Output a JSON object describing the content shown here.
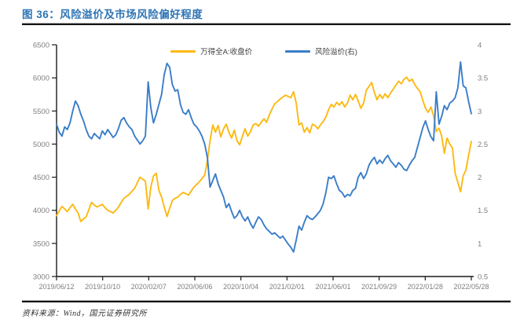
{
  "title": {
    "label": "图 36：风险溢价及市场风险偏好程度"
  },
  "footer": {
    "source": "资料来源：Wind，国元证券研究所"
  },
  "colors": {
    "title_blue": "#2E74B5",
    "wind_a_yellow": "#FDB913",
    "risk_premium_blue": "#3A7DC8",
    "axis_text": "#7F7F7F",
    "spine": "#1A1A1A"
  },
  "chart_data": {
    "type": "line",
    "title": "",
    "grid": false,
    "legend_position": "top-center",
    "legend": [
      {
        "name": "万得全A:收盘价",
        "color": "#FDB913",
        "axis": "left"
      },
      {
        "name": "风险溢价(右)",
        "color": "#3A7DC8",
        "axis": "right"
      }
    ],
    "x_tick_labels": [
      "2019/06/12",
      "2019/10/10",
      "2020/02/07",
      "2020/06/06",
      "2020/10/04",
      "2021/02/01",
      "2021/06/01",
      "2021/09/29",
      "2022/01/28",
      "2022/05/28"
    ],
    "left_axis": {
      "label": "万得全A:收盘价",
      "min": 3000,
      "max": 6500,
      "ticks": [
        3000,
        3500,
        4000,
        4500,
        5000,
        5500,
        6000,
        6500
      ]
    },
    "right_axis": {
      "label": "风险溢价",
      "min": 0.5,
      "max": 4,
      "ticks": [
        0.5,
        1,
        1.5,
        2,
        2.5,
        3,
        3.5,
        4
      ]
    },
    "series": [
      {
        "name": "万得全A:收盘价",
        "axis": "left",
        "color": "#FDB913",
        "values": [
          3920,
          3990,
          4060,
          4020,
          3980,
          4040,
          4090,
          4020,
          3960,
          3830,
          3870,
          3900,
          4010,
          4120,
          4080,
          4050,
          4070,
          4090,
          4040,
          4000,
          3980,
          3960,
          4000,
          4050,
          4120,
          4180,
          4210,
          4240,
          4290,
          4330,
          4420,
          4500,
          4470,
          4440,
          4020,
          4350,
          4520,
          4560,
          4300,
          4200,
          4050,
          3905,
          4030,
          4150,
          4180,
          4200,
          4240,
          4270,
          4250,
          4230,
          4290,
          4350,
          4390,
          4430,
          4480,
          4530,
          4750,
          5050,
          5290,
          5180,
          5280,
          5110,
          5230,
          5300,
          5180,
          5090,
          5210,
          5050,
          4990,
          5120,
          5230,
          5120,
          5190,
          5290,
          5310,
          5270,
          5330,
          5380,
          5330,
          5440,
          5530,
          5610,
          5640,
          5680,
          5710,
          5740,
          5720,
          5700,
          5790,
          5620,
          5290,
          5320,
          5180,
          5250,
          5170,
          5300,
          5280,
          5230,
          5290,
          5340,
          5410,
          5520,
          5600,
          5560,
          5630,
          5590,
          5640,
          5560,
          5620,
          5740,
          5670,
          5750,
          5650,
          5540,
          5620,
          5810,
          5870,
          5930,
          5780,
          5670,
          5750,
          5690,
          5760,
          5700,
          5770,
          5830,
          5890,
          5950,
          5910,
          5980,
          6010,
          5950,
          5980,
          5900,
          5840,
          5790,
          5660,
          5540,
          5480,
          5560,
          5430,
          5190,
          5240,
          5120,
          4860,
          5090,
          5000,
          4940,
          4560,
          4420,
          4280,
          4520,
          4610,
          4830,
          5040
        ]
      },
      {
        "name": "风险溢价(右)",
        "axis": "right",
        "color": "#3A7DC8",
        "values": [
          2.8,
          2.68,
          2.62,
          2.76,
          2.72,
          2.82,
          3.0,
          3.15,
          3.08,
          2.95,
          2.85,
          2.72,
          2.62,
          2.58,
          2.66,
          2.62,
          2.58,
          2.7,
          2.64,
          2.72,
          2.66,
          2.6,
          2.64,
          2.74,
          2.86,
          2.9,
          2.82,
          2.76,
          2.72,
          2.62,
          2.56,
          2.5,
          2.55,
          2.62,
          3.44,
          3.05,
          2.82,
          2.95,
          3.1,
          3.25,
          3.55,
          3.72,
          3.66,
          3.4,
          3.3,
          3.32,
          3.1,
          2.98,
          2.95,
          3.02,
          2.9,
          2.8,
          2.76,
          2.7,
          2.62,
          2.5,
          2.3,
          1.85,
          1.95,
          2.05,
          1.9,
          1.8,
          1.7,
          1.54,
          1.6,
          1.48,
          1.38,
          1.42,
          1.5,
          1.4,
          1.34,
          1.4,
          1.3,
          1.23,
          1.32,
          1.4,
          1.36,
          1.28,
          1.22,
          1.18,
          1.14,
          1.16,
          1.12,
          1.08,
          1.11,
          1.05,
          0.99,
          0.94,
          0.87,
          1.05,
          1.26,
          1.2,
          1.32,
          1.42,
          1.38,
          1.36,
          1.4,
          1.45,
          1.5,
          1.6,
          1.77,
          2.0,
          1.98,
          2.02,
          1.9,
          1.8,
          1.77,
          1.7,
          1.74,
          1.72,
          1.8,
          1.83,
          2.0,
          2.07,
          1.98,
          2.05,
          2.18,
          2.25,
          2.3,
          2.2,
          2.26,
          2.21,
          2.28,
          2.33,
          2.25,
          2.2,
          2.15,
          2.22,
          2.18,
          2.12,
          2.1,
          2.18,
          2.25,
          2.3,
          2.45,
          2.6,
          2.75,
          2.85,
          2.72,
          2.61,
          2.55,
          3.29,
          2.8,
          2.92,
          3.08,
          3.02,
          3.12,
          3.15,
          3.2,
          3.35,
          3.74,
          3.38,
          3.35,
          3.14,
          2.96
        ]
      }
    ]
  }
}
